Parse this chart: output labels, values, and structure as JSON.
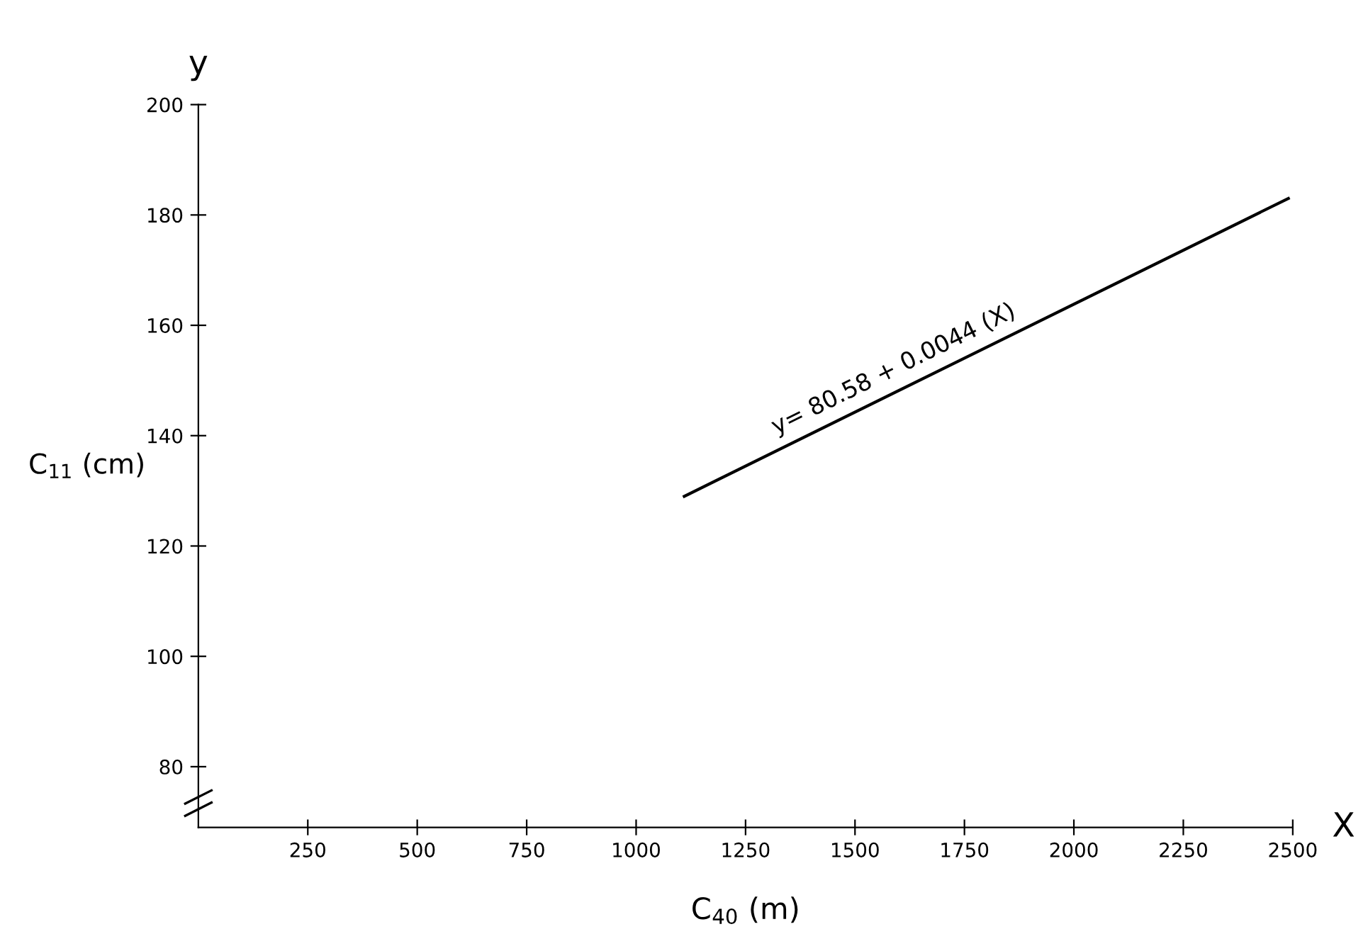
{
  "chart_data": {
    "type": "line",
    "xlabel": "C$_{40}$ (m)",
    "ylabel": "C$_{11}$ (cm)",
    "x": [
      1110,
      2490
    ],
    "series": [
      {
        "color": "#000000",
        "values": [
          129,
          183
        ]
      }
    ],
    "xlim": [
      0,
      2500
    ],
    "ylim": [
      69,
      200
    ],
    "xticks": [
      250,
      500,
      750,
      1000,
      1250,
      1500,
      1750,
      2000,
      2250,
      2500
    ],
    "yticks": [
      80,
      100,
      120,
      140,
      160,
      180,
      200
    ],
    "grid": false,
    "marker": "none",
    "line_style": "solid",
    "annotations": [
      {
        "text": "y= 80.58 + 0.0044 (X)",
        "x": 1600,
        "y": 148
      },
      "y",
      "X"
    ]
  }
}
